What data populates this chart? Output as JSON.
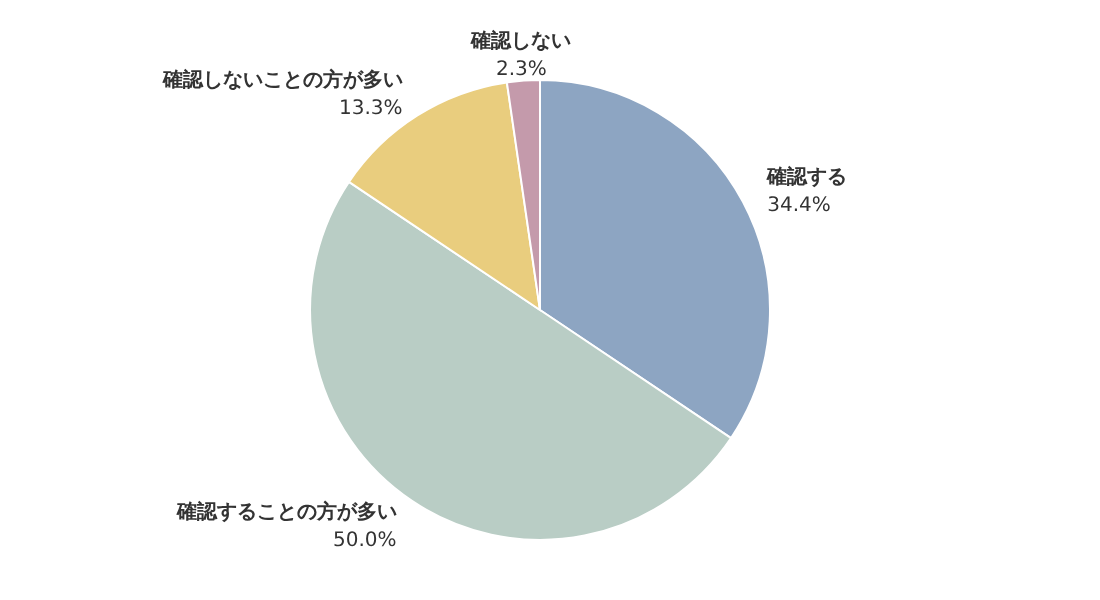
{
  "chart_data": {
    "type": "pie",
    "categories": [
      "確認する",
      "確認することの方が多い",
      "確認しないことの方が多い",
      "確認しない"
    ],
    "values": [
      34.4,
      50.0,
      13.3,
      2.3
    ],
    "colors": [
      "#8da5c2",
      "#b9cdc5",
      "#e9cd7e",
      "#c49aab"
    ],
    "value_labels": [
      "34.4%",
      "50.0%",
      "13.3%",
      "2.3%"
    ]
  }
}
